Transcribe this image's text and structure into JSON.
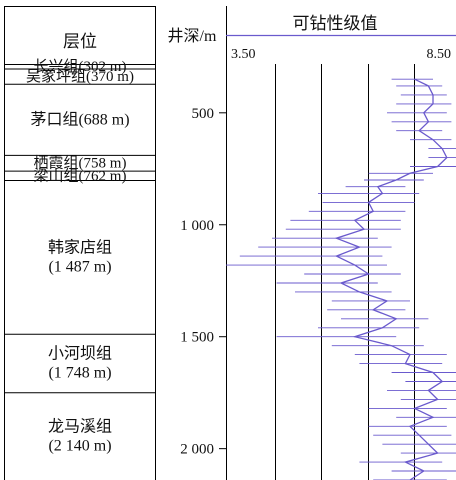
{
  "header": {
    "formation_col": "层位",
    "depth_col": "井深/m",
    "drillability_col": "可钻性级值"
  },
  "formations": [
    {
      "name": "长兴组(302 m)",
      "lines": [
        "长兴组(302 m)"
      ],
      "top": 282,
      "bottom": 302
    },
    {
      "name": "吴家坪组(370 m)",
      "lines": [
        "吴家坪组(370 m)"
      ],
      "top": 302,
      "bottom": 370
    },
    {
      "name": "茅口组(688 m)",
      "lines": [
        "茅口组(688 m)"
      ],
      "top": 370,
      "bottom": 688
    },
    {
      "name": "栖霞组(758 m)",
      "lines": [
        "栖霞组(758 m)"
      ],
      "top": 688,
      "bottom": 758
    },
    {
      "name": "梁山组(762 m)",
      "lines": [
        "梁山组(762 m)"
      ],
      "top": 758,
      "bottom": 800
    },
    {
      "name": "韩家店组(1 487 m)",
      "lines": [
        "韩家店组",
        "(1 487 m)"
      ],
      "top": 800,
      "bottom": 1487
    },
    {
      "name": "小河坝组(1 748 m)",
      "lines": [
        "小河坝组",
        "(1 748 m)"
      ],
      "top": 1487,
      "bottom": 1748
    },
    {
      "name": "龙马溪组(2 140 m)",
      "lines": [
        "龙马溪组",
        "(2 140 m)"
      ],
      "top": 1748,
      "bottom": 2140
    }
  ],
  "chart_data": {
    "type": "line",
    "title": "可钻性级值",
    "ylabel": "井深/m",
    "xlabel": "",
    "x_tick_labels": [
      "3.50",
      "8.50"
    ],
    "xlim": [
      3.5,
      8.5
    ],
    "ylim": [
      282,
      2140
    ],
    "y_inverted": true,
    "y_ticks": [
      500,
      1000,
      1500,
      2000
    ],
    "y_tick_labels": [
      "500",
      "1 000",
      "1 500",
      "2 000"
    ],
    "line_color": "#6a5acd",
    "series": [
      {
        "depth_m": [
          350,
          380,
          420,
          460,
          500,
          540,
          580,
          620,
          660,
          700,
          740,
          770,
          800,
          830,
          860,
          900,
          940,
          980,
          1020,
          1060,
          1100,
          1140,
          1180,
          1220,
          1260,
          1300,
          1340,
          1380,
          1420,
          1460,
          1500,
          1540,
          1580,
          1620,
          1660,
          1700,
          1740,
          1780,
          1820,
          1860,
          1900,
          1940,
          1980,
          2020,
          2060,
          2100,
          2140
        ],
        "drillability": [
          7.6,
          7.9,
          8.0,
          8.0,
          7.8,
          7.9,
          7.7,
          8.0,
          8.2,
          8.3,
          8.1,
          7.5,
          7.2,
          6.8,
          6.9,
          6.6,
          6.7,
          6.3,
          6.5,
          5.9,
          6.4,
          5.9,
          6.3,
          6.6,
          6.0,
          6.4,
          7.0,
          6.7,
          7.2,
          6.9,
          6.3,
          7.1,
          7.5,
          7.4,
          8.0,
          8.2,
          7.9,
          8.1,
          7.6,
          8.0,
          7.5,
          7.7,
          7.9,
          8.1,
          7.4,
          7.8,
          7.5
        ],
        "spike_min": [
          7.1,
          7.2,
          7.3,
          7.2,
          7.0,
          7.1,
          7.2,
          7.5,
          7.9,
          7.9,
          7.5,
          6.6,
          6.5,
          6.1,
          5.5,
          5.6,
          5.3,
          4.9,
          4.8,
          4.5,
          4.2,
          3.8,
          3.5,
          5.2,
          4.6,
          5.0,
          5.8,
          5.7,
          6.0,
          5.5,
          4.6,
          5.8,
          6.3,
          6.4,
          7.1,
          7.4,
          7.0,
          7.3,
          6.6,
          7.2,
          6.6,
          6.7,
          6.9,
          7.3,
          6.4,
          7.1,
          6.7
        ],
        "spike_max": [
          8.0,
          8.2,
          8.3,
          8.4,
          8.3,
          8.4,
          8.2,
          8.4,
          8.5,
          8.5,
          8.5,
          8.0,
          7.8,
          7.4,
          7.7,
          7.6,
          7.4,
          7.3,
          7.3,
          6.8,
          7.1,
          6.9,
          7.0,
          7.3,
          6.8,
          7.1,
          7.5,
          7.4,
          7.9,
          7.7,
          7.2,
          7.8,
          8.3,
          8.2,
          8.5,
          8.5,
          8.5,
          8.5,
          8.3,
          8.5,
          8.3,
          8.4,
          8.5,
          8.5,
          8.2,
          8.5,
          8.3
        ]
      }
    ]
  }
}
